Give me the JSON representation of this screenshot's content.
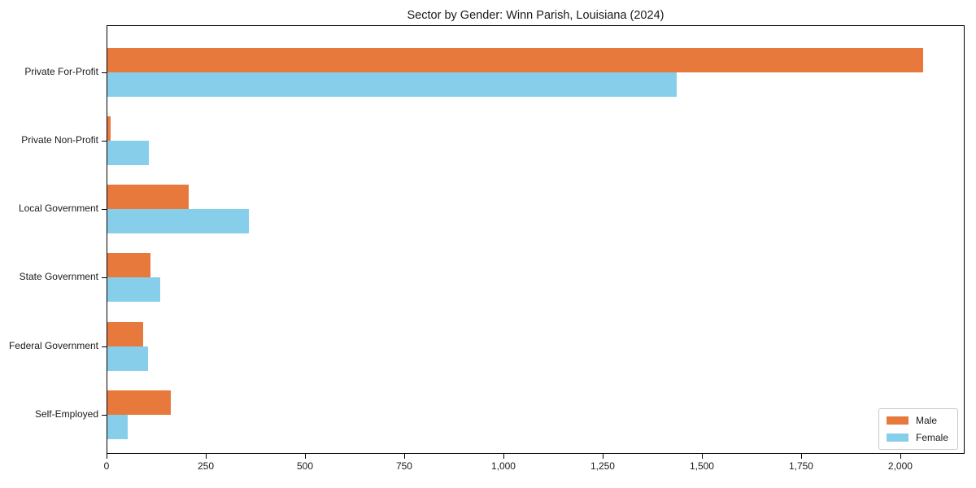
{
  "chart_data": {
    "type": "bar",
    "orientation": "horizontal",
    "title": "Sector by Gender: Winn Parish, Louisiana (2024)",
    "categories": [
      "Private For-Profit",
      "Private Non-Profit",
      "Local Government",
      "State Government",
      "Federal Government",
      "Self-Employed"
    ],
    "series": [
      {
        "name": "Male",
        "color": "#e8793d",
        "values": [
          2058,
          11,
          206,
          111,
          92,
          162
        ]
      },
      {
        "name": "Female",
        "color": "#87ceeb",
        "values": [
          1437,
          107,
          358,
          135,
          104,
          54
        ]
      }
    ],
    "xlim": [
      0,
      2162
    ],
    "xticks": [
      0,
      250,
      500,
      750,
      1000,
      1250,
      1500,
      1750,
      2000
    ],
    "xtick_labels": [
      "0",
      "250",
      "500",
      "750",
      "1,000",
      "1,250",
      "1,500",
      "1,750",
      "2,000"
    ],
    "xlabel": "",
    "ylabel": "",
    "grid": false,
    "legend_position": "lower right",
    "legend_items": [
      "Male",
      "Female"
    ]
  }
}
